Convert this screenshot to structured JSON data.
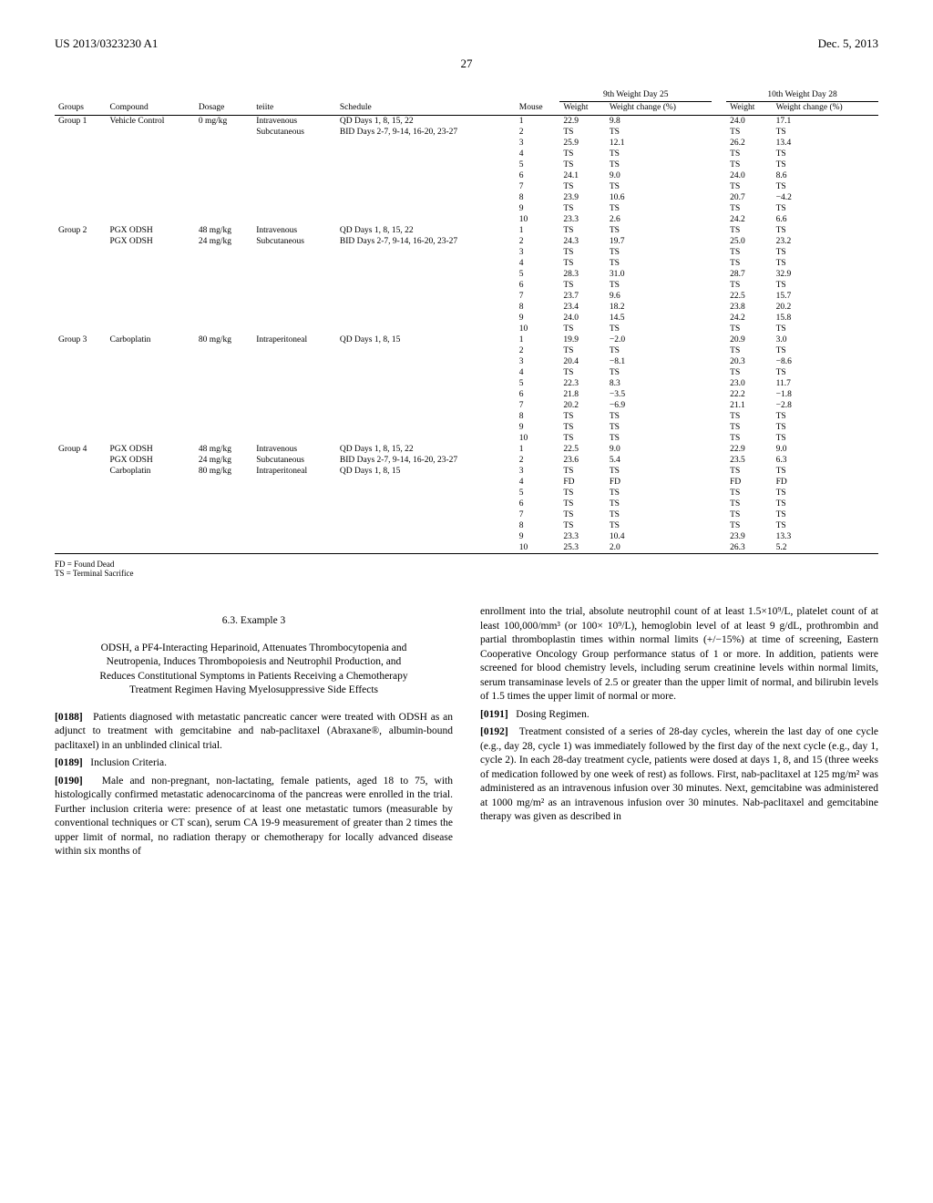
{
  "header": {
    "pub_number": "US 2013/0323230 A1",
    "pub_date": "Dec. 5, 2013",
    "page_number": "27"
  },
  "table": {
    "day_headers": {
      "ninth": "9th Weight Day 25",
      "tenth": "10th Weight Day 28"
    },
    "columns": {
      "groups": "Groups",
      "compound": "Compound",
      "dosage": "Dosage",
      "route": "teiite",
      "schedule": "Schedule",
      "mouse": "Mouse",
      "weight": "Weight",
      "weight_change": "Weight change (%)"
    },
    "groups": [
      {
        "group": "Group 1",
        "cells": [
          {
            "compound": "Vehicle Control",
            "dosage": "0 mg/kg",
            "route": "Intravenous",
            "schedule": "QD Days 1, 8, 15, 22"
          },
          {
            "compound": "",
            "dosage": "",
            "route": "Subcutaneous",
            "schedule": "BID Days 2-7, 9-14, 16-20, 23-27"
          }
        ],
        "rows": [
          {
            "m": "1",
            "w9": "22.9",
            "c9": "9.8",
            "w10": "24.0",
            "c10": "17.1"
          },
          {
            "m": "2",
            "w9": "TS",
            "c9": "TS",
            "w10": "TS",
            "c10": "TS"
          },
          {
            "m": "3",
            "w9": "25.9",
            "c9": "12.1",
            "w10": "26.2",
            "c10": "13.4"
          },
          {
            "m": "4",
            "w9": "TS",
            "c9": "TS",
            "w10": "TS",
            "c10": "TS"
          },
          {
            "m": "5",
            "w9": "TS",
            "c9": "TS",
            "w10": "TS",
            "c10": "TS"
          },
          {
            "m": "6",
            "w9": "24.1",
            "c9": "9.0",
            "w10": "24.0",
            "c10": "8.6"
          },
          {
            "m": "7",
            "w9": "TS",
            "c9": "TS",
            "w10": "TS",
            "c10": "TS"
          },
          {
            "m": "8",
            "w9": "23.9",
            "c9": "10.6",
            "w10": "20.7",
            "c10": "−4.2"
          },
          {
            "m": "9",
            "w9": "TS",
            "c9": "TS",
            "w10": "TS",
            "c10": "TS"
          },
          {
            "m": "10",
            "w9": "23.3",
            "c9": "2.6",
            "w10": "24.2",
            "c10": "6.6"
          }
        ]
      },
      {
        "group": "Group 2",
        "cells": [
          {
            "compound": "PGX ODSH",
            "dosage": "48 mg/kg",
            "route": "Intravenous",
            "schedule": "QD Days 1, 8, 15, 22"
          },
          {
            "compound": "PGX ODSH",
            "dosage": "24 mg/kg",
            "route": "Subcutaneous",
            "schedule": "BID Days 2-7, 9-14, 16-20, 23-27"
          }
        ],
        "rows": [
          {
            "m": "1",
            "w9": "TS",
            "c9": "TS",
            "w10": "TS",
            "c10": "TS"
          },
          {
            "m": "2",
            "w9": "24.3",
            "c9": "19.7",
            "w10": "25.0",
            "c10": "23.2"
          },
          {
            "m": "3",
            "w9": "TS",
            "c9": "TS",
            "w10": "TS",
            "c10": "TS"
          },
          {
            "m": "4",
            "w9": "TS",
            "c9": "TS",
            "w10": "TS",
            "c10": "TS"
          },
          {
            "m": "5",
            "w9": "28.3",
            "c9": "31.0",
            "w10": "28.7",
            "c10": "32.9"
          },
          {
            "m": "6",
            "w9": "TS",
            "c9": "TS",
            "w10": "TS",
            "c10": "TS"
          },
          {
            "m": "7",
            "w9": "23.7",
            "c9": "9.6",
            "w10": "22.5",
            "c10": "15.7"
          },
          {
            "m": "8",
            "w9": "23.4",
            "c9": "18.2",
            "w10": "23.8",
            "c10": "20.2"
          },
          {
            "m": "9",
            "w9": "24.0",
            "c9": "14.5",
            "w10": "24.2",
            "c10": "15.8"
          },
          {
            "m": "10",
            "w9": "TS",
            "c9": "TS",
            "w10": "TS",
            "c10": "TS"
          }
        ]
      },
      {
        "group": "Group 3",
        "cells": [
          {
            "compound": "Carboplatin",
            "dosage": "80 mg/kg",
            "route": "Intraperitoneal",
            "schedule": "QD Days 1, 8, 15"
          }
        ],
        "rows": [
          {
            "m": "1",
            "w9": "19.9",
            "c9": "−2.0",
            "w10": "20.9",
            "c10": "3.0"
          },
          {
            "m": "2",
            "w9": "TS",
            "c9": "TS",
            "w10": "TS",
            "c10": "TS"
          },
          {
            "m": "3",
            "w9": "20.4",
            "c9": "−8.1",
            "w10": "20.3",
            "c10": "−8.6"
          },
          {
            "m": "4",
            "w9": "TS",
            "c9": "TS",
            "w10": "TS",
            "c10": "TS"
          },
          {
            "m": "5",
            "w9": "22.3",
            "c9": "8.3",
            "w10": "23.0",
            "c10": "11.7"
          },
          {
            "m": "6",
            "w9": "21.8",
            "c9": "−3.5",
            "w10": "22.2",
            "c10": "−1.8"
          },
          {
            "m": "7",
            "w9": "20.2",
            "c9": "−6.9",
            "w10": "21.1",
            "c10": "−2.8"
          },
          {
            "m": "8",
            "w9": "TS",
            "c9": "TS",
            "w10": "TS",
            "c10": "TS"
          },
          {
            "m": "9",
            "w9": "TS",
            "c9": "TS",
            "w10": "TS",
            "c10": "TS"
          },
          {
            "m": "10",
            "w9": "TS",
            "c9": "TS",
            "w10": "TS",
            "c10": "TS"
          }
        ]
      },
      {
        "group": "Group 4",
        "cells": [
          {
            "compound": "PGX ODSH",
            "dosage": "48 mg/kg",
            "route": "Intravenous",
            "schedule": "QD Days 1, 8, 15, 22"
          },
          {
            "compound": "PGX ODSH",
            "dosage": "24 mg/kg",
            "route": "Subcutaneous",
            "schedule": "BID Days 2-7, 9-14, 16-20, 23-27"
          },
          {
            "compound": "Carboplatin",
            "dosage": "80 mg/kg",
            "route": "Intraperitoneal",
            "schedule": "QD Days 1, 8, 15"
          }
        ],
        "rows": [
          {
            "m": "1",
            "w9": "22.5",
            "c9": "9.0",
            "w10": "22.9",
            "c10": "9.0"
          },
          {
            "m": "2",
            "w9": "23.6",
            "c9": "5.4",
            "w10": "23.5",
            "c10": "6.3"
          },
          {
            "m": "3",
            "w9": "TS",
            "c9": "TS",
            "w10": "TS",
            "c10": "TS"
          },
          {
            "m": "4",
            "w9": "FD",
            "c9": "FD",
            "w10": "FD",
            "c10": "FD"
          },
          {
            "m": "5",
            "w9": "TS",
            "c9": "TS",
            "w10": "TS",
            "c10": "TS"
          },
          {
            "m": "6",
            "w9": "TS",
            "c9": "TS",
            "w10": "TS",
            "c10": "TS"
          },
          {
            "m": "7",
            "w9": "TS",
            "c9": "TS",
            "w10": "TS",
            "c10": "TS"
          },
          {
            "m": "8",
            "w9": "TS",
            "c9": "TS",
            "w10": "TS",
            "c10": "TS"
          },
          {
            "m": "9",
            "w9": "23.3",
            "c9": "10.4",
            "w10": "23.9",
            "c10": "13.3"
          },
          {
            "m": "10",
            "w9": "25.3",
            "c9": "2.0",
            "w10": "26.3",
            "c10": "5.2"
          }
        ]
      }
    ]
  },
  "footnotes": {
    "fd": "FD = Found Dead",
    "ts": "TS = Terminal Sacrifice"
  },
  "body": {
    "example_num": "6.3. Example 3",
    "example_title": "ODSH, a PF4-Interacting Heparinoid, Attenuates Thrombocytopenia and Neutropenia, Induces Thrombopoiesis and Neutrophil Production, and Reduces Constitutional Symptoms in Patients Receiving a Chemotherapy Treatment Regimen Having Myelosuppressive Side Effects",
    "p0188": "Patients diagnosed with metastatic pancreatic cancer were treated with ODSH as an adjunct to treatment with gemcitabine and nab-paclitaxel (Abraxane®, albumin-bound paclitaxel) in an unblinded clinical trial.",
    "p0189": "Inclusion Criteria.",
    "p0190": "Male and non-pregnant, non-lactating, female patients, aged 18 to 75, with histologically confirmed metastatic adenocarcinoma of the pancreas were enrolled in the trial. Further inclusion criteria were: presence of at least one metastatic tumors (measurable by conventional techniques or CT scan), serum CA 19-9 measurement of greater than 2 times the upper limit of normal, no radiation therapy or chemotherapy for locally advanced disease within six months of",
    "p_col2_cont": "enrollment into the trial, absolute neutrophil count of at least 1.5×10⁹/L, platelet count of at least 100,000/mm³ (or 100× 10⁹/L), hemoglobin level of at least 9 g/dL, prothrombin and partial thromboplastin times within normal limits (+/−15%) at time of screening, Eastern Cooperative Oncology Group performance status of 1 or more. In addition, patients were screened for blood chemistry levels, including serum creatinine levels within normal limits, serum transaminase levels of 2.5 or greater than the upper limit of normal, and bilirubin levels of 1.5 times the upper limit of normal or more.",
    "p0191": "Dosing Regimen.",
    "p0192": "Treatment consisted of a series of 28-day cycles, wherein the last day of one cycle (e.g., day 28, cycle 1) was immediately followed by the first day of the next cycle (e.g., day 1, cycle 2). In each 28-day treatment cycle, patients were dosed at days 1, 8, and 15 (three weeks of medication followed by one week of rest) as follows. First, nab-paclitaxel at 125 mg/m² was administered as an intravenous infusion over 30 minutes. Next, gemcitabine was administered at 1000 mg/m² as an intravenous infusion over 30 minutes. Nab-paclitaxel and gemcitabine therapy was given as described in"
  }
}
